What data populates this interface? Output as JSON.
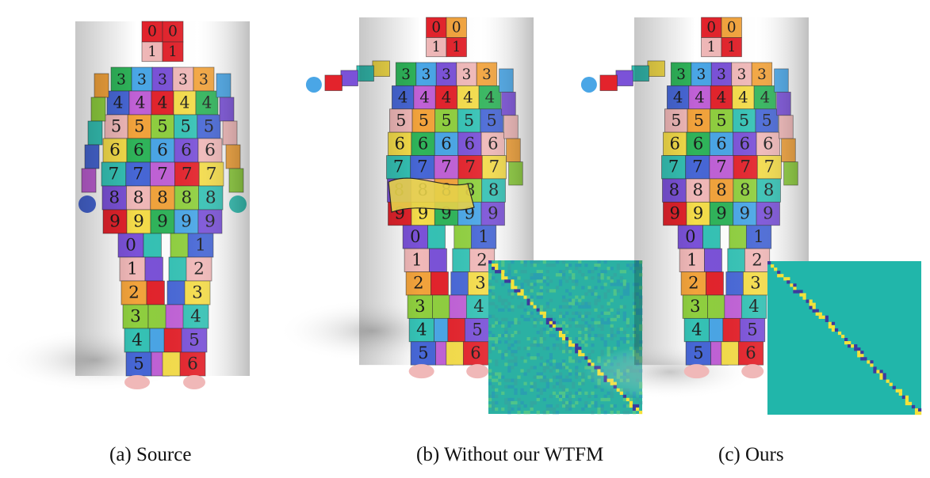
{
  "figure": {
    "panels": [
      {
        "id": "a",
        "caption": "(a) Source"
      },
      {
        "id": "b",
        "caption": "(b) Without our WTFM"
      },
      {
        "id": "c",
        "caption": "(c) Ours"
      }
    ],
    "row_digits": [
      "0",
      "1",
      "2",
      "3",
      "4",
      "5",
      "6",
      "7",
      "8",
      "9"
    ],
    "palette": [
      "#e3232c",
      "#f2a33c",
      "#f4dc4a",
      "#8fcf3f",
      "#2fb45a",
      "#35c2b5",
      "#4aa6e6",
      "#4767d6",
      "#7b52d8",
      "#c061d6",
      "#f0b8b8"
    ],
    "heatmap_colors": {
      "background": "#22b4a8",
      "diagonal_high": "#f4e23a",
      "diagonal_low": "#3d3a9e",
      "mid": "#4fc48a"
    }
  }
}
